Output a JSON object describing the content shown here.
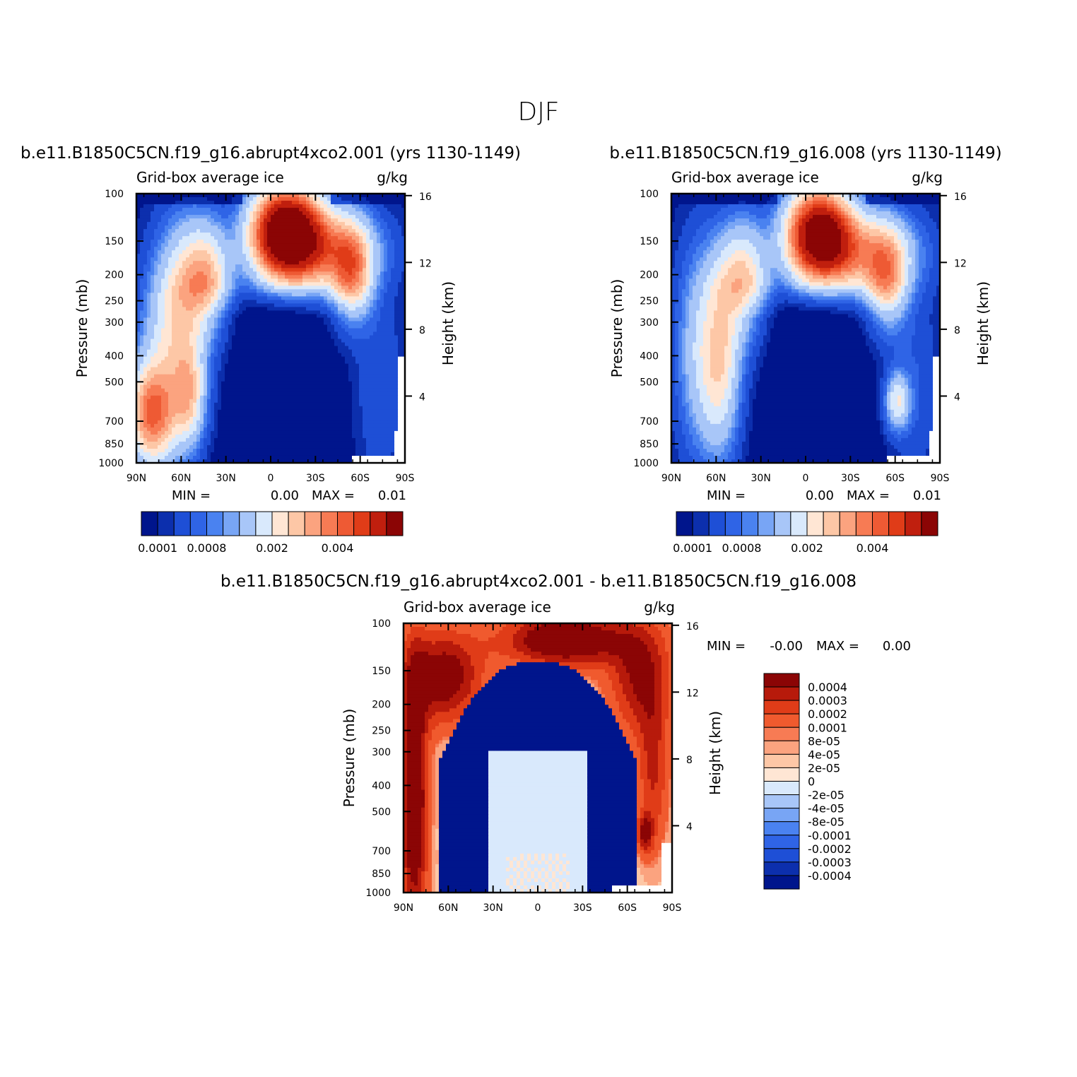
{
  "main_title": "DJF",
  "panel_subtitle": "Grid-box average ice",
  "units": "g/kg",
  "pressure_axis_label": "Pressure (mb)",
  "height_axis_label": "Height (km)",
  "pressure_ticks": [
    "100",
    "150",
    "200",
    "250",
    "300",
    "400",
    "500",
    "700",
    "850",
    "1000"
  ],
  "height_ticks": [
    "16",
    "12",
    "8",
    "4"
  ],
  "lat_ticks": [
    "90N",
    "60N",
    "30N",
    "0",
    "30S",
    "60S",
    "90S"
  ],
  "panels": [
    {
      "id": "top-left",
      "case_title": "b.e11.B1850C5CN.f19_g16.abrupt4xco2.001 (yrs 1130-1149)",
      "min_label": "MIN =",
      "min_value": "0.00",
      "max_label": "MAX =",
      "max_value": "0.01"
    },
    {
      "id": "top-right",
      "case_title": "b.e11.B1850C5CN.f19_g16.008 (yrs 1130-1149)",
      "min_label": "MIN =",
      "min_value": "0.00",
      "max_label": "MAX =",
      "max_value": "0.01"
    },
    {
      "id": "bottom",
      "case_title": "b.e11.B1850C5CN.f19_g16.abrupt4xco2.001 - b.e11.B1850C5CN.f19_g16.008",
      "min_label": "MIN =",
      "min_value": "-0.00",
      "max_label": "MAX =",
      "max_value": "0.00"
    }
  ],
  "horiz_colorbar_labels": [
    "0.0001",
    "0.0008",
    "0.002",
    "0.004"
  ],
  "horiz_colorbar_colors": [
    "#00158c",
    "#0c2fad",
    "#1e4fd6",
    "#2f64e6",
    "#4a82f0",
    "#78a5f5",
    "#a8c6f8",
    "#d9e9fc",
    "#ffe6d4",
    "#fdc7a6",
    "#fba37f",
    "#f77b54",
    "#ee5a34",
    "#e03c18",
    "#c01f0e",
    "#8b0505"
  ],
  "vert_colorbar_labels": [
    "0.0004",
    "0.0003",
    "0.0002",
    "0.0001",
    "8e-05",
    "4e-05",
    "2e-05",
    "0",
    "-2e-05",
    "-4e-05",
    "-8e-05",
    "-0.0001",
    "-0.0002",
    "-0.0003",
    "-0.0004"
  ],
  "vert_colorbar_colors": [
    "#8b0505",
    "#b71a0b",
    "#e03c18",
    "#f05a2e",
    "#f77b54",
    "#fba37f",
    "#fdc7a6",
    "#ffe6d4",
    "#d9e9fc",
    "#a8c6f8",
    "#78a5f5",
    "#4a82f0",
    "#2f64e6",
    "#1e4fd6",
    "#0c2fad",
    "#00158c"
  ],
  "chart_data": [
    {
      "type": "heatmap",
      "title": "b.e11.B1850C5CN.f19_g16.abrupt4xco2.001 (yrs 1130-1149)",
      "variable": "Grid-box average ice",
      "units": "g/kg",
      "x": [
        "90N",
        "60N",
        "30N",
        "0",
        "30S",
        "60S",
        "90S"
      ],
      "y_pressure_mb": [
        100,
        150,
        200,
        250,
        300,
        400,
        500,
        700,
        850,
        1000
      ],
      "y_height_km": [
        16,
        12,
        8,
        4
      ],
      "min": 0.0,
      "max": 0.01,
      "levels": [
        0.0001,
        0.0008,
        0.002,
        0.004
      ]
    },
    {
      "type": "heatmap",
      "title": "b.e11.B1850C5CN.f19_g16.008 (yrs 1130-1149)",
      "variable": "Grid-box average ice",
      "units": "g/kg",
      "x": [
        "90N",
        "60N",
        "30N",
        "0",
        "30S",
        "60S",
        "90S"
      ],
      "y_pressure_mb": [
        100,
        150,
        200,
        250,
        300,
        400,
        500,
        700,
        850,
        1000
      ],
      "y_height_km": [
        16,
        12,
        8,
        4
      ],
      "min": 0.0,
      "max": 0.01,
      "levels": [
        0.0001,
        0.0008,
        0.002,
        0.004
      ]
    },
    {
      "type": "heatmap",
      "title": "b.e11.B1850C5CN.f19_g16.abrupt4xco2.001 - b.e11.B1850C5CN.f19_g16.008",
      "variable": "Grid-box average ice",
      "units": "g/kg",
      "x": [
        "90N",
        "60N",
        "30N",
        "0",
        "30S",
        "60S",
        "90S"
      ],
      "y_pressure_mb": [
        100,
        150,
        200,
        250,
        300,
        400,
        500,
        700,
        850,
        1000
      ],
      "y_height_km": [
        16,
        12,
        8,
        4
      ],
      "min": -0.0,
      "max": 0.0,
      "levels": [
        -0.0004,
        -0.0003,
        -0.0002,
        -0.0001,
        -8e-05,
        -4e-05,
        -2e-05,
        0,
        2e-05,
        4e-05,
        8e-05,
        0.0001,
        0.0002,
        0.0003,
        0.0004
      ]
    }
  ]
}
